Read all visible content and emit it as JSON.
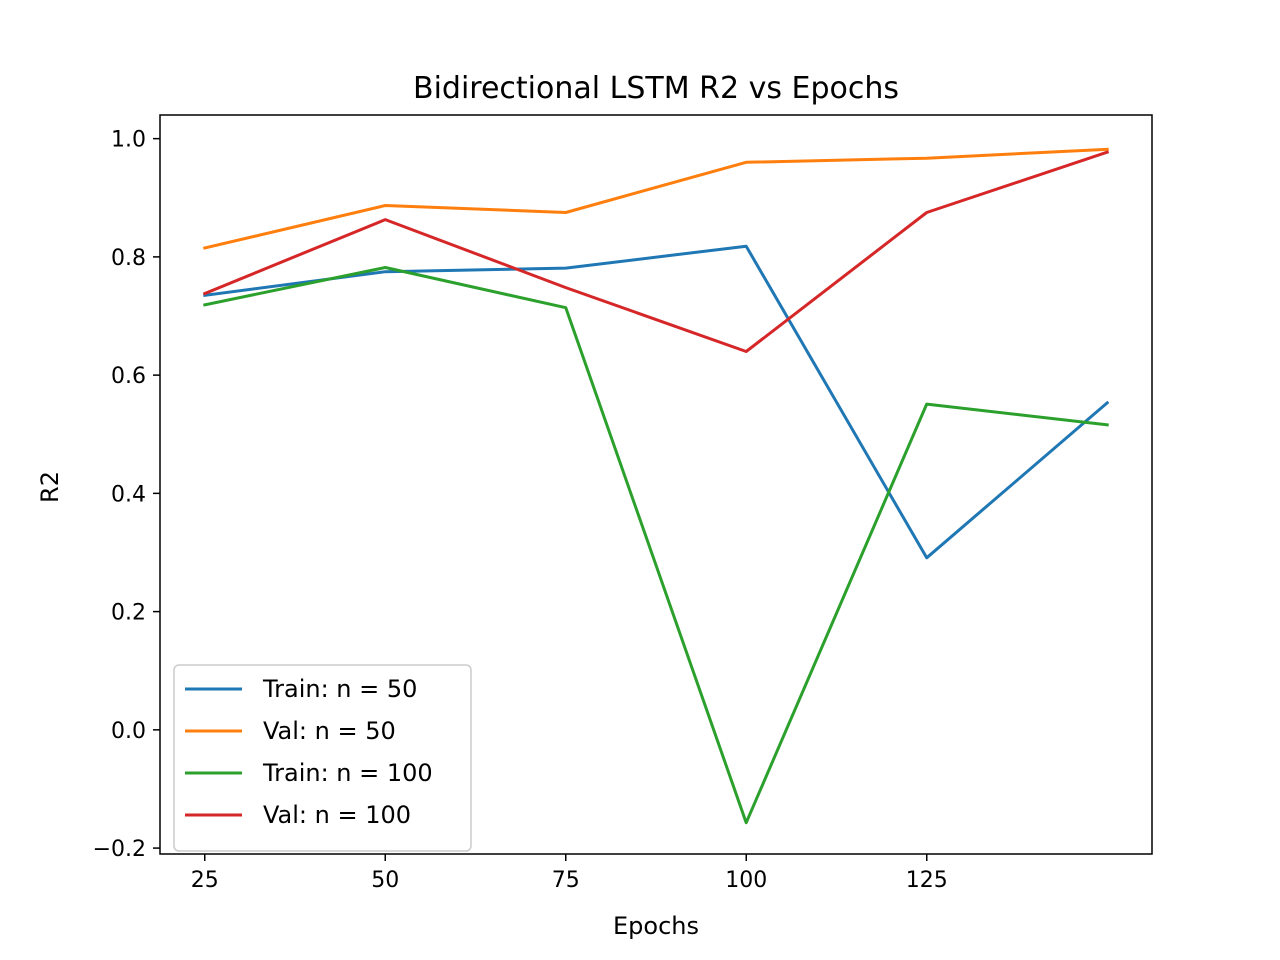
{
  "chart_data": {
    "type": "line",
    "title": "Bidirectional LSTM R2 vs Epochs",
    "xlabel": "Epochs",
    "ylabel": "R2",
    "x": [
      25,
      50,
      75,
      100,
      125,
      150
    ],
    "xlim": [
      18.8,
      156.2
    ],
    "ylim": [
      -0.21,
      1.04
    ],
    "xticks": [
      25,
      50,
      75,
      100,
      125
    ],
    "xtick_labels": [
      "25",
      "50",
      "75",
      "100",
      "125"
    ],
    "yticks": [
      -0.2,
      0.0,
      0.2,
      0.4,
      0.6,
      0.8,
      1.0
    ],
    "ytick_labels": [
      "−0.2",
      "0.0",
      "0.2",
      "0.4",
      "0.6",
      "0.8",
      "1.0"
    ],
    "grid": false,
    "legend_position": "lower-left",
    "series": [
      {
        "name": "Train: n = 50",
        "color": "#1f77b4",
        "values": [
          0.735,
          0.775,
          0.781,
          0.818,
          0.291,
          0.553
        ]
      },
      {
        "name": "Val: n = 50",
        "color": "#ff7f0e",
        "values": [
          0.815,
          0.887,
          0.875,
          0.96,
          0.967,
          0.982
        ]
      },
      {
        "name": "Train: n = 100",
        "color": "#2ca02c",
        "values": [
          0.719,
          0.782,
          0.714,
          -0.157,
          0.551,
          0.516
        ]
      },
      {
        "name": "Val: n = 100",
        "color": "#d62728",
        "values": [
          0.738,
          0.863,
          0.748,
          0.64,
          0.875,
          0.977
        ]
      }
    ]
  }
}
